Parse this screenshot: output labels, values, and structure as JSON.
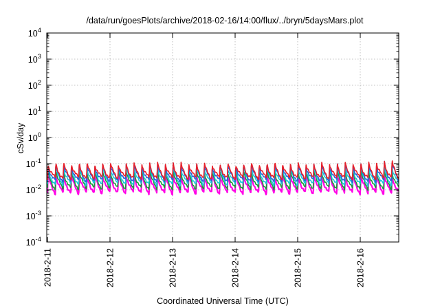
{
  "chart_data": {
    "type": "line",
    "title": "/data/run/goesPlots/archive/2018-02-16/14:00/flux/../bryn/5daysMars.plot",
    "xlabel": "Coordinated Universal Time (UTC)",
    "ylabel": "cSv/day",
    "yscale": "log",
    "ylim_exp": [
      -4,
      4
    ],
    "y_tick_labels": [
      {
        "base": "10",
        "exp": "-4"
      },
      {
        "base": "10",
        "exp": "-3"
      },
      {
        "base": "10",
        "exp": "-2"
      },
      {
        "base": "10",
        "exp": "-1"
      },
      {
        "base": "10",
        "exp": "0"
      },
      {
        "base": "10",
        "exp": "1"
      },
      {
        "base": "10",
        "exp": "2"
      },
      {
        "base": "10",
        "exp": "3"
      },
      {
        "base": "10",
        "exp": "4"
      }
    ],
    "x_tick_labels": [
      "2018-2-11",
      "2018-2-12",
      "2018-2-13",
      "2018-2-14",
      "2018-2-15",
      "2018-2-16"
    ],
    "xlim": [
      "2018-02-11",
      "2018-02-16 14:00"
    ],
    "grid": true,
    "pattern": {
      "description": "recurring sawtooth pulses, about 8 per day",
      "pulses_per_day": 8,
      "peak_values": {
        "red": 0.11,
        "blue": 0.1,
        "cyan": 0.08,
        "green": 0.06,
        "magenta": 0.045
      },
      "trough_values": {
        "red": 0.028,
        "blue": 0.022,
        "cyan": 0.016,
        "green": 0.011,
        "magenta": 0.0075
      },
      "late_peak_values_2018_02_16": {
        "red": 0.16,
        "blue": 0.15
      }
    },
    "series": [
      {
        "color": "#e8202a"
      },
      {
        "color": "#2a5fd8"
      },
      {
        "color": "#18c8d8"
      },
      {
        "color": "#1a9a3a"
      },
      {
        "color": "#ff00e6"
      }
    ]
  }
}
